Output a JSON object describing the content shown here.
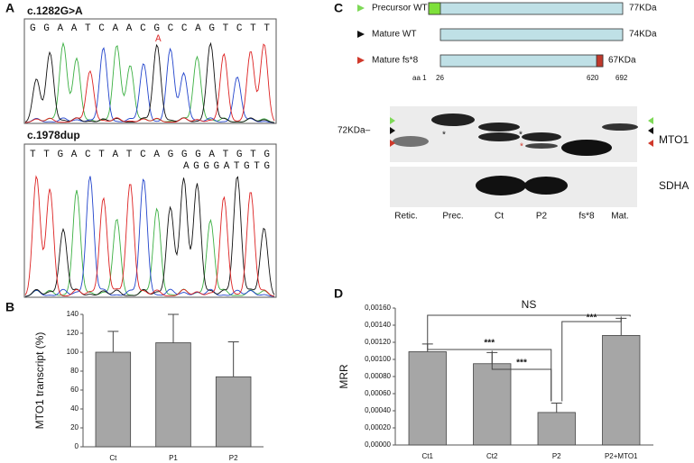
{
  "panel_labels": [
    "A",
    "B",
    "C",
    "D"
  ],
  "panel_a": {
    "traces": [
      {
        "title": "c.1282G>A",
        "sequence": "GGAATCAACGCCAGTCTT",
        "variant": "A"
      },
      {
        "title": "c.1978dup",
        "sequence": "TTGACTATCAGGGATGTG",
        "variant": "AGGGATGTG"
      }
    ]
  },
  "panel_c": {
    "constructs": [
      {
        "name": "Precursor WT",
        "size": "77KDa"
      },
      {
        "name": "Mature WT",
        "size": "74KDa"
      },
      {
        "name": "Mature fs*8",
        "size": "67KDa"
      }
    ],
    "positions": [
      "aa 1",
      "26",
      "620",
      "692"
    ],
    "marker": "72KDa–",
    "blots": [
      "MTO1",
      "SDHA"
    ],
    "lanes": [
      "Retic.",
      "Prec.",
      "Ct",
      "P2",
      "fs*8",
      "Mat."
    ],
    "blot_marks": [
      "*",
      "*",
      "*"
    ]
  },
  "chart_data": [
    {
      "type": "bar",
      "y_label": "MTO1 transcript (%)",
      "categories": [
        "Ct",
        "P1",
        "P2"
      ],
      "values": [
        100,
        110,
        74
      ],
      "errors": [
        22,
        30,
        37
      ],
      "color": "#a6a6a6",
      "ylim": [
        0,
        140
      ],
      "yticks": [
        0,
        20,
        40,
        60,
        80,
        100,
        120,
        140
      ]
    },
    {
      "type": "bar",
      "y_label": "MRR",
      "categories": [
        "Ct1",
        "Ct2",
        "P2",
        "P2+MTO1"
      ],
      "values": [
        0.00109,
        0.00095,
        0.00038,
        0.00128
      ],
      "errors": [
        9e-05,
        0.00013,
        0.00011,
        0.0002
      ],
      "color": "#a6a6a6",
      "ylim": [
        0,
        0.0016
      ],
      "yticks": [
        {
          "value": 0,
          "label": "0,00000"
        },
        {
          "value": 0.0002,
          "label": "0,00020"
        },
        {
          "value": 0.0004,
          "label": "0,00040"
        },
        {
          "value": 0.0006,
          "label": "0,00060"
        },
        {
          "value": 0.0008,
          "label": "0,00080"
        },
        {
          "value": 0.001,
          "label": "0,00100"
        },
        {
          "value": 0.0012,
          "label": "0,00120"
        },
        {
          "value": 0.0014,
          "label": "0,00140"
        },
        {
          "value": 0.0016,
          "label": "0,00160"
        }
      ],
      "annotations": [
        "NS",
        "***",
        "***",
        "***"
      ]
    }
  ]
}
